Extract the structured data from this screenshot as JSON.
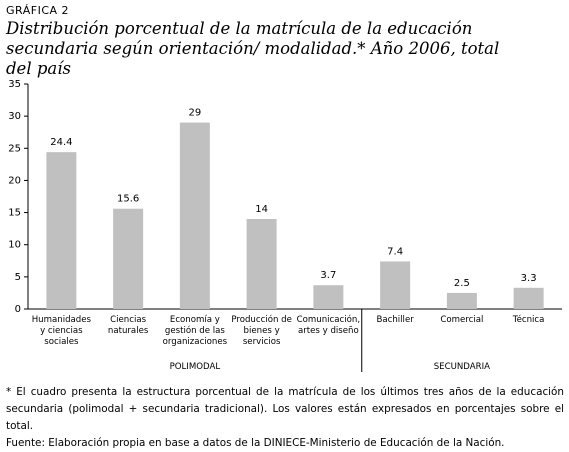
{
  "chart_data": {
    "type": "bar",
    "label": "GRÁFICA 2",
    "title": "Distribución porcentual de la matrícula de la educación secundaria según orientación/ modalidad.* Año 2006, total del país",
    "categories": [
      "Humanidades y ciencias sociales",
      "Ciencias naturales",
      "Economía y gestión de las organizaciones",
      "Producción de bienes y servicios",
      "Comunicación, artes y diseño",
      "Bachiller",
      "Comercial",
      "Técnica"
    ],
    "values": [
      24.4,
      15.6,
      29,
      14,
      3.7,
      7.4,
      2.5,
      3.3
    ],
    "color": "#c0c0c0",
    "groups": [
      "POLIMODAL",
      "SECUNDARIA"
    ],
    "ylim": [
      0,
      35
    ],
    "yticks": [
      0,
      5,
      10,
      15,
      20,
      25,
      30,
      35
    ],
    "notes": [
      "* El cuadro presenta la estructura porcentual de la matrícula de los últimos tres años de la educación secundaria (polimodal + secundaria tradicional). Los valores están expresados en porcentajes sobre el total.",
      "Fuente: Elaboración propia en base a datos de la DINIECE-Ministerio de Educación de la Nación."
    ]
  }
}
